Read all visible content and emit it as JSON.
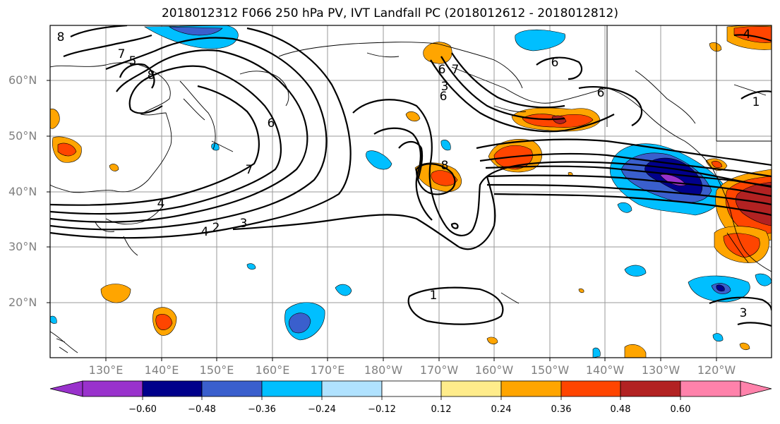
{
  "title": "2018012312 F066 250 hPa PV, IVT Landfall PC (2018012612 - 2018012812)",
  "lat_labels": [
    "60°N",
    "50°N",
    "40°N",
    "30°N",
    "20°N"
  ],
  "lon_labels": [
    "130°E",
    "140°E",
    "150°E",
    "160°E",
    "170°E",
    "180°W",
    "170°W",
    "160°W",
    "150°W",
    "140°W",
    "130°W",
    "120°W"
  ],
  "contour_labels": [
    "8",
    "7",
    "5",
    "8",
    "7",
    "6",
    "4",
    "3",
    "2",
    "4",
    "8",
    "7",
    "6",
    "3",
    "6",
    "6",
    "6",
    "1",
    "1",
    "3",
    "4"
  ],
  "colorbar": {
    "ticks": [
      "−0.60",
      "−0.48",
      "−0.36",
      "−0.24",
      "−0.12",
      "0.12",
      "0.24",
      "0.36",
      "0.48",
      "0.60"
    ],
    "colors": [
      "#9932cc",
      "#00008b",
      "#3a5fcd",
      "#00bfff",
      "#b0e2ff",
      "#ffffff",
      "#ffec8b",
      "#ffa500",
      "#ff4500",
      "#b22222",
      "#ff82ab"
    ]
  }
}
